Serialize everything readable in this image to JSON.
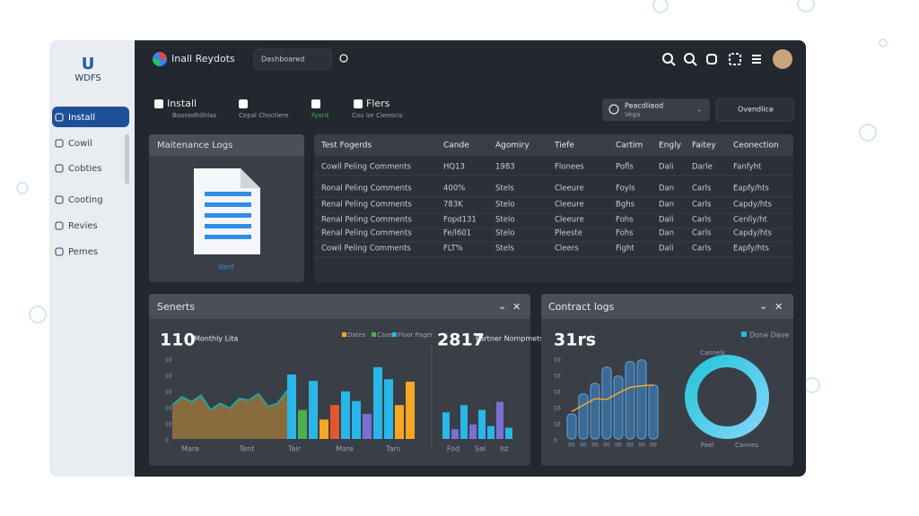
{
  "sidebar": {
    "logo": "U",
    "brand": "WDFS",
    "items": [
      "Install",
      "Cowil",
      "Cobties",
      "Cooting",
      "Revies",
      "Pemes"
    ]
  },
  "topbar": {
    "app": "Inall Reydots",
    "search": "Dashboared"
  },
  "toolbar": {
    "tabs": [
      {
        "label": "Install",
        "sub": "Boonodhlihlas"
      },
      {
        "label": "",
        "sub": "Cepal Choctiere"
      },
      {
        "label": "",
        "sub": "Fyord"
      },
      {
        "label": "Flers",
        "sub": "Cou lor Cienocis"
      }
    ],
    "dropdown": {
      "label": "Peacdliaod",
      "sub": "Vega"
    },
    "filter": "Ovendlice"
  },
  "logs": {
    "title": "Maitenance Logs",
    "file": "Vant"
  },
  "table": {
    "headers": [
      "Test Fogerds",
      "Cande",
      "Agomiry",
      "Tiefe",
      "Cartim",
      "Engly",
      "Faitey",
      "Ceonection"
    ],
    "rows": [
      [
        "Cowil Peling Comments",
        "HQ13",
        "1983",
        "Flonees",
        "Pofls",
        "Dali",
        "Darle",
        "Fanfyht"
      ],
      [
        "Ronal Peling Comments",
        "400%",
        "Stels",
        "Cleeure",
        "Foyls",
        "Dan",
        "Carls",
        "Eapfy/hts"
      ],
      [
        "Renal Peling Comments",
        "783K",
        "Stelo",
        "Cleeure",
        "Bghs",
        "Dan",
        "Carls",
        "Capdy/hts"
      ],
      [
        "Renal Peling Comments",
        "Fopd131",
        "Stelo",
        "Cleeure",
        "Fohs",
        "Dali",
        "Carls",
        "Cenlly/ht"
      ],
      [
        "Renal Peling Comments",
        "Fe/l601",
        "Stelo",
        "Pleeste",
        "Fohs",
        "Dan",
        "Carls",
        "Capdy/hts"
      ],
      [
        "Cowil Peling Comments",
        "FLT%",
        "Stels",
        "Cleers",
        "Fight",
        "Dali",
        "Carls",
        "Eapfy/hts"
      ]
    ]
  },
  "senerts": {
    "title": "Senerts",
    "stat": "110",
    "stat_label": "Monthly Lita",
    "legend": [
      "Dates",
      "Cave",
      "Floor Pager"
    ],
    "yticks": [
      "10",
      "10",
      "10",
      "10",
      "10",
      "0"
    ],
    "xlabels": [
      "Mare",
      "Tent",
      "Tair",
      "Mare",
      "Tars"
    ],
    "area": [
      4.2,
      5.2,
      4.6,
      5.4,
      3.6,
      4.4,
      3.8,
      5.0,
      4.8,
      5.6,
      4.0,
      4.4,
      6.0
    ],
    "bars": {
      "colors": [
        "#29b6e8",
        "#4caf50",
        "#29b6e8",
        "#f5a623",
        "#e4572e",
        "#29b6e8",
        "#29b6e8",
        "#7b6fd6",
        "#29b6e8",
        "#29b6e8",
        "#f5a623",
        "#f5a623"
      ],
      "values": [
        8.0,
        3.6,
        7.2,
        2.4,
        4.2,
        5.9,
        4.7,
        3.1,
        8.9,
        7.4,
        4.2,
        7.1
      ]
    },
    "stat2": "2817",
    "stat2_label": "Partner Nompmets",
    "xlabels2": [
      "Fod",
      "Sal",
      "Ist"
    ],
    "bars2": {
      "colors": [
        "#29b6e8",
        "#7b6fd6",
        "#29b6e8",
        "#7b6fd6",
        "#29b6e8",
        "#29b6e8",
        "#7b6fd6",
        "#29b6e8"
      ],
      "values": [
        3.3,
        1.2,
        4.2,
        1.8,
        3.6,
        1.6,
        4.6,
        1.4
      ]
    }
  },
  "contract": {
    "title": "Contract logs",
    "stat": "31rs",
    "legend": "Done Dave",
    "yticks": [
      "10",
      "10",
      "10",
      "10",
      "10",
      "0"
    ],
    "xlabels": [
      "00",
      "00",
      "00",
      "00",
      "00",
      "00",
      "00",
      "00"
    ],
    "bars": [
      3.1,
      5.6,
      6.9,
      8.9,
      7.8,
      9.6,
      9.8,
      6.7
    ],
    "line": [
      3.4,
      4.2,
      5.0,
      4.9,
      5.7,
      6.4,
      6.6,
      6.7
    ],
    "donut_label": "Cannels",
    "donut_xlabels": [
      "Pael",
      "Cannes"
    ]
  }
}
